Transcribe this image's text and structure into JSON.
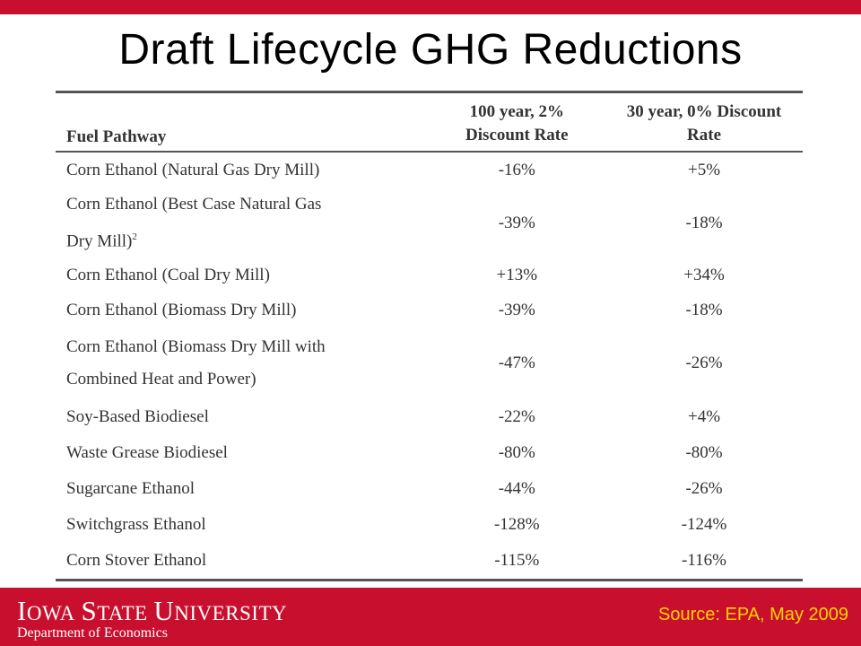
{
  "slide": {
    "title": "Draft Lifecycle GHG Reductions",
    "colors": {
      "brand_red": "#c8102e",
      "source_text": "#ffd100"
    }
  },
  "table": {
    "headers": {
      "fuel_pathway": "Fuel Pathway",
      "col_100_line1": "100 year, 2%",
      "col_100_line2": "Discount Rate",
      "col_30_line1": "30 year, 0% Discount",
      "col_30_line2": "Rate"
    },
    "rows": [
      {
        "line1": "Corn Ethanol (Natural Gas Dry Mill)",
        "line2": "",
        "sup": "",
        "v100": "-16%",
        "v30": "+5%"
      },
      {
        "line1": "Corn Ethanol (Best Case Natural Gas",
        "line2": "Dry Mill)",
        "sup": "2",
        "v100": "-39%",
        "v30": "-18%"
      },
      {
        "line1": "Corn Ethanol (Coal Dry Mill)",
        "line2": "",
        "sup": "",
        "v100": "+13%",
        "v30": "+34%"
      },
      {
        "line1": "Corn Ethanol (Biomass Dry Mill)",
        "line2": "",
        "sup": "",
        "v100": "-39%",
        "v30": "-18%"
      },
      {
        "line1": "Corn Ethanol (Biomass Dry Mill with",
        "line2": "Combined Heat and Power)",
        "sup": "",
        "v100": "-47%",
        "v30": "-26%"
      },
      {
        "line1": "Soy-Based Biodiesel",
        "line2": "",
        "sup": "",
        "v100": "-22%",
        "v30": "+4%"
      },
      {
        "line1": "Waste Grease Biodiesel",
        "line2": "",
        "sup": "",
        "v100": "-80%",
        "v30": "-80%"
      },
      {
        "line1": "Sugarcane Ethanol",
        "line2": "",
        "sup": "",
        "v100": "-44%",
        "v30": "-26%"
      },
      {
        "line1": "Switchgrass Ethanol",
        "line2": "",
        "sup": "",
        "v100": "-128%",
        "v30": "-124%"
      },
      {
        "line1": "Corn Stover Ethanol",
        "line2": "",
        "sup": "",
        "v100": "-115%",
        "v30": "-116%"
      }
    ]
  },
  "footer": {
    "university": "Iowa State University",
    "department": "Department of Economics",
    "source": "Source: EPA, May 2009"
  }
}
